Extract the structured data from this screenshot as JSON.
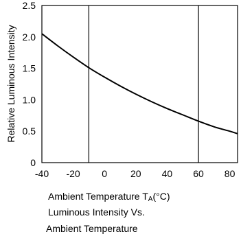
{
  "chart_data": {
    "type": "line",
    "title": "Luminous Intensity Vs.",
    "subtitle": "Ambient Temperature",
    "xlabel": "Ambient Temperature T",
    "xlabel_subscript": "A",
    "xlabel_unit": "(°C)",
    "ylabel": "Relative Luminous Intensity",
    "xlim": [
      -40,
      85
    ],
    "ylim": [
      0,
      2.5
    ],
    "x_ticks": [
      "-40",
      "-20",
      "0",
      "20",
      "40",
      "60",
      "80"
    ],
    "x_tick_values": [
      -40,
      -20,
      0,
      20,
      40,
      60,
      80
    ],
    "y_ticks": [
      "0",
      "0.5",
      "1.0",
      "1.5",
      "2.0",
      "2.5"
    ],
    "y_tick_values": [
      0,
      0.5,
      1.0,
      1.5,
      2.0,
      2.5
    ],
    "grid": {
      "vertical_at_x": [
        -10,
        60
      ]
    },
    "series": [
      {
        "x": [
          -40,
          -30,
          -20,
          -10,
          0,
          10,
          20,
          30,
          40,
          50,
          60,
          70,
          80,
          85
        ],
        "values": [
          2.05,
          1.86,
          1.68,
          1.51,
          1.36,
          1.22,
          1.09,
          0.97,
          0.86,
          0.76,
          0.66,
          0.57,
          0.5,
          0.46
        ]
      }
    ]
  }
}
